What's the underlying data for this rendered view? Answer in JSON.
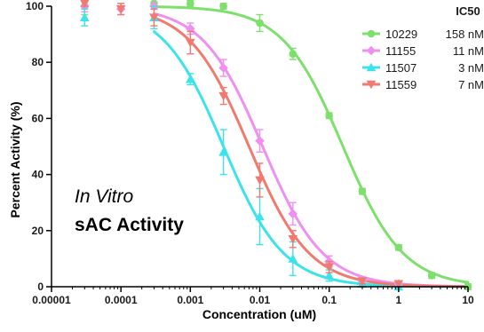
{
  "chart_data": {
    "type": "scatter",
    "x_scale": "log",
    "xlim": [
      1e-05,
      10
    ],
    "ylim": [
      0,
      100
    ],
    "xlabel": "Concentration (uM)",
    "ylabel": "Percent Activity (%)",
    "x_ticks": [
      "0.00001",
      "0.0001",
      "0.001",
      "0.01",
      "0.1",
      "1",
      "10"
    ],
    "y_ticks": [
      "0",
      "20",
      "40",
      "60",
      "80",
      "100"
    ],
    "annotation_line1": "In Vitro",
    "annotation_line2": "sAC Activity",
    "legend_title": "IC50",
    "legend_placement": "top-right",
    "grid": false,
    "series": [
      {
        "name": "10229",
        "ic50_label": "158 nM",
        "ic50": 0.158,
        "hill": 1.0,
        "color": "#7ddf6c",
        "marker": "circle",
        "x": [
          3e-05,
          0.0003,
          0.001,
          0.003,
          0.01,
          0.03,
          0.1,
          0.3,
          1,
          3,
          10
        ],
        "y": [
          100,
          101,
          101,
          100,
          94,
          83,
          61,
          34,
          14,
          4,
          0
        ],
        "err": [
          3,
          2,
          1,
          1,
          3,
          2,
          1,
          1,
          1,
          1,
          1
        ]
      },
      {
        "name": "11155",
        "ic50_label": "11 nM",
        "ic50": 0.011,
        "hill": 1.0,
        "color": "#ef8ff0",
        "marker": "diamond",
        "x": [
          3e-05,
          0.0001,
          0.0003,
          0.001,
          0.003,
          0.01,
          0.03,
          0.1,
          0.3,
          1
        ],
        "y": [
          100,
          99,
          100,
          92,
          78,
          52,
          26,
          9,
          2,
          1
        ],
        "err": [
          2,
          2,
          3,
          2,
          3,
          4,
          4,
          2,
          1,
          1
        ]
      },
      {
        "name": "11507",
        "ic50_label": "3 nM",
        "ic50": 0.003,
        "hill": 1.0,
        "color": "#3de3ea",
        "marker": "triangle-up",
        "x": [
          3e-05,
          0.0003,
          0.001,
          0.003,
          0.01,
          0.03,
          0.1,
          0.3,
          1
        ],
        "y": [
          96,
          96,
          74,
          48,
          25,
          10,
          4,
          1,
          0
        ],
        "err": [
          3,
          4,
          2,
          8,
          10,
          6,
          2,
          1,
          1
        ]
      },
      {
        "name": "11559",
        "ic50_label": "7 nM",
        "ic50": 0.007,
        "hill": 1.0,
        "color": "#f07a70",
        "marker": "triangle-down",
        "x": [
          3e-05,
          0.0001,
          0.0003,
          0.001,
          0.003,
          0.01,
          0.03,
          0.1,
          0.3,
          1
        ],
        "y": [
          101,
          99,
          96,
          87,
          68,
          38,
          17,
          7,
          2,
          1
        ],
        "err": [
          1,
          2,
          3,
          4,
          3,
          6,
          3,
          2,
          1,
          1
        ]
      }
    ]
  }
}
